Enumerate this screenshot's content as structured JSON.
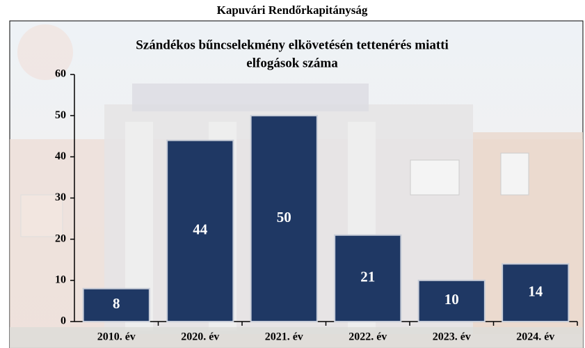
{
  "header": {
    "title": "Kapuvári Rendőrkapitányság"
  },
  "chart_data": {
    "type": "bar",
    "title": [
      "Szándékos bűncselekmény elkövetésén tettenérés miatti",
      "elfogások száma"
    ],
    "categories": [
      "2010. év",
      "2020. év",
      "2021. év",
      "2022. év",
      "2023. év",
      "2024. év"
    ],
    "values": [
      8,
      44,
      50,
      21,
      10,
      14
    ],
    "color": "#1f3864",
    "ylim": [
      0,
      60
    ],
    "yticks": [
      0,
      10,
      20,
      30,
      40,
      50,
      60
    ],
    "grid": false
  }
}
